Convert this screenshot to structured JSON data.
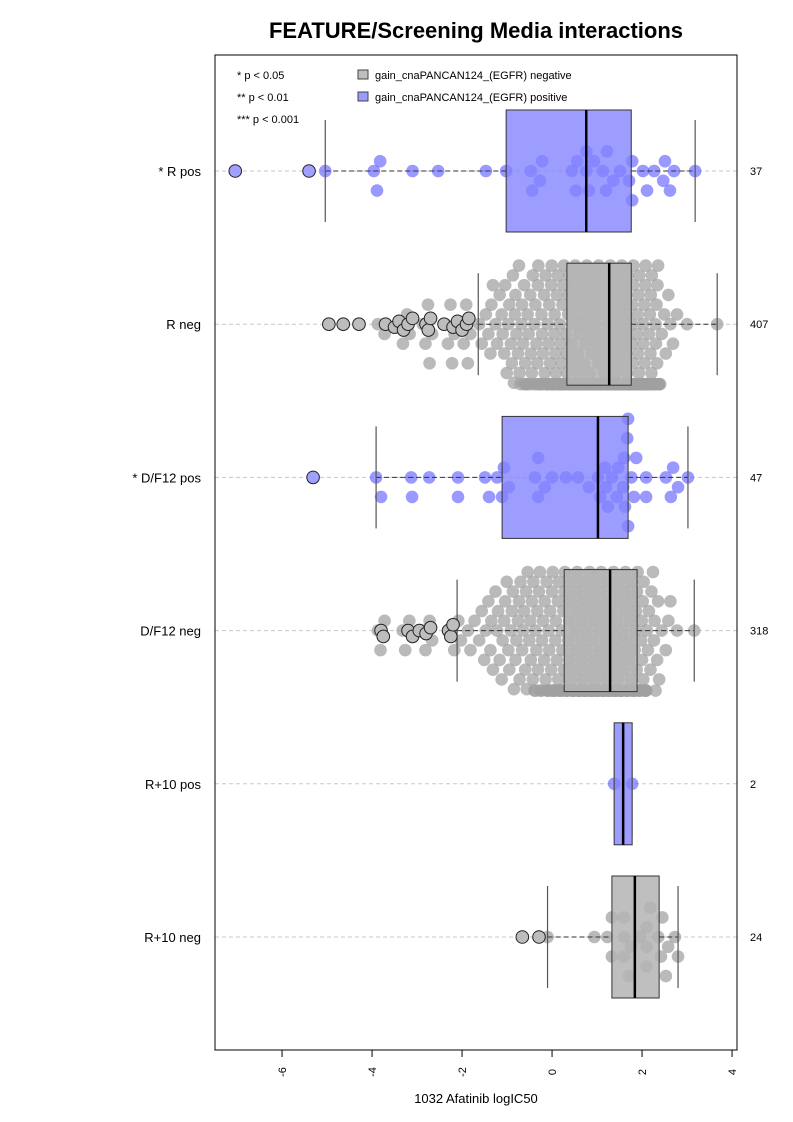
{
  "chart_data": {
    "type": "boxplot",
    "orientation": "horizontal",
    "title": "FEATURE/Screening Media interactions",
    "xlabel": "1032 Afatinib logIC50",
    "ylabel": "",
    "xlim": [
      -7.49,
      4.11
    ],
    "xticks": [
      -6,
      -4,
      -2,
      0,
      2,
      4
    ],
    "xtick_labels": [
      "-6",
      "-4",
      "-2",
      "0",
      "2",
      "4"
    ],
    "grid": "horizontal dashed guides per group",
    "significance_legend": [
      "* p < 0.05",
      "** p < 0.01",
      "*** p < 0.001"
    ],
    "legend": [
      {
        "label": "gain_cnaPANCAN124_(EGFR) negative",
        "color": "#bebebe"
      },
      {
        "label": "gain_cnaPANCAN124_(EGFR) positive",
        "color": "#9a9aff"
      }
    ],
    "legend_position": "top",
    "colors": {
      "neg_box": "#bebebe",
      "pos_box": "#9c9cff",
      "neg_point": "#a6a6a6",
      "pos_point": "#6a6aff"
    },
    "groups": [
      {
        "label": "* R pos",
        "n": "37",
        "status": "positive",
        "q1": -1.02,
        "median": 0.76,
        "q3": 1.76,
        "whisker_low": -5.04,
        "whisker_high": 3.18,
        "outliers": [
          -7.04,
          -5.4
        ],
        "values": [
          -5.04,
          -3.96,
          -3.89,
          -3.82,
          -3.1,
          -2.53,
          -1.47,
          -1.02,
          -0.47,
          -0.44,
          -0.27,
          -0.22,
          0.44,
          0.53,
          0.56,
          0.76,
          0.76,
          0.82,
          0.93,
          1.13,
          1.2,
          1.22,
          1.36,
          1.51,
          1.71,
          1.78,
          1.78,
          2.02,
          2.11,
          2.27,
          2.47,
          2.51,
          2.62,
          2.71,
          3.18
        ]
      },
      {
        "label": "R neg",
        "n": "407",
        "status": "negative",
        "q1": 0.33,
        "median": 1.27,
        "q3": 1.76,
        "whisker_low": -1.64,
        "whisker_high": 3.67,
        "outliers": [
          -4.96,
          -4.64,
          -4.29,
          -3.7,
          -3.5,
          -3.4,
          -3.3,
          -3.2,
          -3.1,
          -2.8,
          -2.75,
          -2.7,
          -2.4,
          -2.2,
          -2.1,
          -2.0,
          -1.9,
          -1.85
        ],
        "bins": [
          [
            -3.75,
            2
          ],
          [
            -3.25,
            4
          ],
          [
            -2.75,
            5
          ],
          [
            -2.25,
            5
          ],
          [
            -1.9,
            5
          ],
          [
            -1.5,
            4
          ],
          [
            -1.25,
            6
          ],
          [
            -1.0,
            9
          ],
          [
            -0.75,
            12
          ],
          [
            -0.5,
            14
          ],
          [
            -0.25,
            16
          ],
          [
            0,
            20
          ],
          [
            0.25,
            24
          ],
          [
            0.5,
            26
          ],
          [
            0.75,
            28
          ],
          [
            1.0,
            30
          ],
          [
            1.25,
            30
          ],
          [
            1.5,
            30
          ],
          [
            1.75,
            28
          ],
          [
            2.0,
            26
          ],
          [
            2.25,
            22
          ],
          [
            2.5,
            6
          ],
          [
            2.75,
            3
          ],
          [
            3.0,
            1
          ],
          [
            3.67,
            1
          ]
        ]
      },
      {
        "label": "* D/F12 pos",
        "n": "47",
        "status": "positive",
        "q1": -1.11,
        "median": 1.02,
        "q3": 1.69,
        "whisker_low": -3.91,
        "whisker_high": 3.02,
        "outliers": [
          -5.31
        ],
        "values": [
          -3.91,
          -3.8,
          -3.13,
          -3.11,
          -2.73,
          -2.09,
          -2.09,
          -1.49,
          -1.4,
          -1.22,
          -1.11,
          -1.07,
          -0.96,
          -0.38,
          -0.31,
          -0.31,
          -0.16,
          0.0,
          0.31,
          0.58,
          0.82,
          1.02,
          1.07,
          1.18,
          1.2,
          1.24,
          1.33,
          1.44,
          1.47,
          1.58,
          1.6,
          1.62,
          1.67,
          1.69,
          1.69,
          1.76,
          1.82,
          1.87,
          2.09,
          2.09,
          2.53,
          2.64,
          2.69,
          2.8,
          3.02
        ]
      },
      {
        "label": "D/F12 neg",
        "n": "318",
        "status": "negative",
        "q1": 0.27,
        "median": 1.29,
        "q3": 1.89,
        "whisker_low": -2.11,
        "whisker_high": 3.16,
        "outliers": [
          -3.8,
          -3.75,
          -3.2,
          -3.1,
          -2.95,
          -2.8,
          -2.7,
          -2.3,
          -2.25,
          -2.2
        ],
        "bins": [
          [
            -3.75,
            3
          ],
          [
            -3.2,
            3
          ],
          [
            -2.75,
            4
          ],
          [
            -2.11,
            4
          ],
          [
            -1.75,
            3
          ],
          [
            -1.5,
            5
          ],
          [
            -1.25,
            7
          ],
          [
            -1.0,
            9
          ],
          [
            -0.75,
            10
          ],
          [
            -0.5,
            12
          ],
          [
            -0.25,
            14
          ],
          [
            0,
            18
          ],
          [
            0.25,
            20
          ],
          [
            0.5,
            22
          ],
          [
            0.75,
            24
          ],
          [
            1.0,
            26
          ],
          [
            1.25,
            26
          ],
          [
            1.5,
            24
          ],
          [
            1.75,
            22
          ],
          [
            2.0,
            18
          ],
          [
            2.25,
            10
          ],
          [
            2.5,
            4
          ],
          [
            2.75,
            2
          ],
          [
            3.16,
            1
          ]
        ]
      },
      {
        "label": "R+10 pos",
        "n": "2",
        "status": "positive",
        "q1": 1.38,
        "median": 1.58,
        "q3": 1.78,
        "whisker_low": 1.38,
        "whisker_high": 1.78,
        "outliers": [],
        "values": [
          1.38,
          1.78
        ]
      },
      {
        "label": "R+10 neg",
        "n": "24",
        "status": "negative",
        "q1": 1.33,
        "median": 1.84,
        "q3": 2.38,
        "whisker_low": -0.1,
        "whisker_high": 2.8,
        "outliers": [
          -0.66,
          -0.29
        ],
        "values": [
          -0.1,
          0.94,
          1.23,
          1.33,
          1.33,
          1.6,
          1.6,
          1.6,
          1.71,
          1.76,
          1.96,
          2.1,
          2.1,
          2.1,
          2.18,
          2.36,
          2.42,
          2.45,
          2.53,
          2.58,
          2.73,
          2.8
        ]
      }
    ]
  }
}
